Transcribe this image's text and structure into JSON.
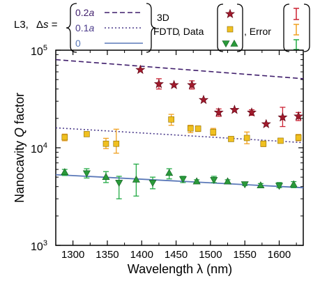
{
  "legend": {
    "prefix": "L3,",
    "ds_symbol": "Δ",
    "ds_var": "s",
    "ds_equals": " =",
    "sim_values": [
      "0.2",
      "0.1",
      "0"
    ],
    "sim_suffix": "a",
    "sim_label_line1": "3D",
    "sim_label_line2": "FDTD",
    "data_label": ", Data",
    "error_label": ", Error",
    "colors": {
      "ds_02": "#3f1d6b",
      "ds_01": "#4a3a8a",
      "ds_0": "#5a78b8",
      "data_02": "#a01a2c",
      "data_01": "#f0c020",
      "data_0": "#2a9a3a",
      "err_02": "#cc2233",
      "err_01": "#f0a020",
      "err_0": "#22aa44"
    }
  },
  "chart_data": {
    "type": "scatter",
    "xlabel": "Wavelength λ (nm)",
    "ylabel_pre": "Nanocavity ",
    "ylabel_italic": "Q",
    "ylabel_post": " factor",
    "x_range": [
      1275,
      1635
    ],
    "y_range": [
      1000,
      100000
    ],
    "y_scale": "log",
    "x_ticks": [
      1300,
      1350,
      1400,
      1450,
      1500,
      1550,
      1600
    ],
    "y_ticks": [
      {
        "value": 1000,
        "base": "10",
        "exp": "3"
      },
      {
        "value": 10000,
        "base": "10",
        "exp": "4"
      },
      {
        "value": 100000,
        "base": "10",
        "exp": "5"
      }
    ],
    "lines": [
      {
        "ds": "0.2a",
        "style": "dashed",
        "x": [
          1275,
          1635
        ],
        "y": [
          80000,
          51000
        ]
      },
      {
        "ds": "0.1a",
        "style": "dotted",
        "x": [
          1275,
          1635
        ],
        "y": [
          16000,
          11300
        ]
      },
      {
        "ds": "0",
        "style": "solid",
        "x": [
          1275,
          1635
        ],
        "y": [
          5300,
          3900
        ]
      }
    ],
    "series": [
      {
        "ds": "0.2a",
        "marker": "star",
        "x": [
          1398,
          1425,
          1447,
          1473,
          1490,
          1512,
          1535,
          1560,
          1581,
          1605,
          1628
        ],
        "y": [
          63000,
          45000,
          44000,
          44000,
          31000,
          23000,
          24500,
          23000,
          17500,
          20500,
          21000
        ],
        "err_lo": [
          63000,
          40000,
          44000,
          40000,
          31000,
          21000,
          24500,
          21500,
          17500,
          16500,
          19000
        ],
        "err_hi": [
          63000,
          51000,
          44000,
          48500,
          31000,
          25000,
          24500,
          24500,
          17500,
          26000,
          23000
        ]
      },
      {
        "ds": "0.1a",
        "marker": "square",
        "x": [
          1288,
          1320,
          1348,
          1363,
          1443,
          1471,
          1482,
          1504,
          1530,
          1553,
          1577,
          1602,
          1628
        ],
        "y": [
          12800,
          13800,
          11000,
          11000,
          19500,
          15800,
          15700,
          14500,
          12300,
          12600,
          11000,
          11800,
          12700
        ],
        "err_lo": [
          11800,
          13300,
          9800,
          8800,
          17000,
          14300,
          14700,
          13400,
          11800,
          11000,
          10300,
          11300,
          11800
        ],
        "err_hi": [
          13800,
          14500,
          12500,
          15500,
          22000,
          17000,
          16700,
          15800,
          12900,
          14500,
          11700,
          12400,
          13700
        ]
      },
      {
        "ds": "0",
        "marker": "triangle",
        "x": [
          1288,
          1320,
          1348,
          1367,
          1392,
          1416,
          1440,
          1460,
          1480,
          1505,
          1525,
          1550,
          1573,
          1600,
          1621
        ],
        "y": [
          5600,
          5500,
          5000,
          4400,
          4700,
          4400,
          5500,
          4800,
          4500,
          4700,
          4500,
          4250,
          4100,
          4100,
          4200
        ],
        "err_lo": [
          5200,
          4900,
          4400,
          3000,
          3200,
          3800,
          4800,
          4400,
          4300,
          4400,
          4300,
          4100,
          3900,
          3900,
          3900
        ],
        "err_hi": [
          6000,
          6100,
          5700,
          5100,
          6800,
          5000,
          6100,
          5100,
          4700,
          5100,
          4700,
          4400,
          4300,
          4400,
          4500
        ]
      }
    ]
  }
}
